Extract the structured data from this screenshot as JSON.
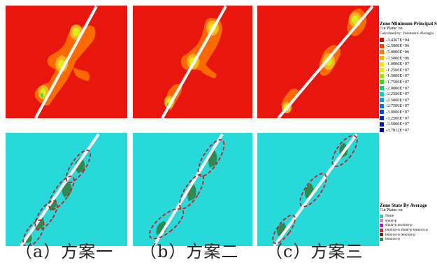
{
  "colors": {
    "stress_background": "#e8160c",
    "zone_background": "#27d9d9",
    "crack_line": "#ffffff",
    "damage_ellipse": "#d01a1a",
    "tension_patch": "#2f8a52"
  },
  "legend_top": {
    "title": "Zone Minimum Principal Stres",
    "sub1": "Cut Plane: on",
    "sub2": "Calculated by: Volumetric Averagin",
    "entries": [
      {
        "label": "-3.4367E+04",
        "color": "#e50000"
      },
      {
        "label": "-2.5000E+06",
        "color": "#ff3b00"
      },
      {
        "label": "-5.0000E+06",
        "color": "#ff7800"
      },
      {
        "label": "-7.5000E+06",
        "color": "#ffae00"
      },
      {
        "label": "-1.0000E+07",
        "color": "#ffe000"
      },
      {
        "label": "-1.2500E+07",
        "color": "#d8f200"
      },
      {
        "label": "-1.5000E+07",
        "color": "#8ee800"
      },
      {
        "label": "-1.7500E+07",
        "color": "#33dd00"
      },
      {
        "label": "-2.0000E+07",
        "color": "#00d26e"
      },
      {
        "label": "-2.2500E+07",
        "color": "#00c8c8"
      },
      {
        "label": "-2.5000E+07",
        "color": "#009ee8"
      },
      {
        "label": "-2.7500E+07",
        "color": "#0070f0"
      },
      {
        "label": "-3.0000E+07",
        "color": "#0044ec"
      },
      {
        "label": "-3.2500E+07",
        "color": "#0022d8"
      },
      {
        "label": "-3.5000E+07",
        "color": "#0010c0"
      },
      {
        "label": "-3.7012E+07",
        "color": "#0000a8"
      }
    ]
  },
  "legend_bottom": {
    "title": "Zone State By Average",
    "sub1": "Cut Plane: on",
    "entries": [
      {
        "label": "None",
        "color": "#22d5d5"
      },
      {
        "label": "shear-p",
        "color": "#e57bd6"
      },
      {
        "label": "shear-p tension-p",
        "color": "#c01ac0"
      },
      {
        "label": "tension-n shear-p tension-p",
        "color": "#ff1a1a"
      },
      {
        "label": "tension-n tension-p",
        "color": "#8b1a1a"
      },
      {
        "label": "tension-p",
        "color": "#2f8a52"
      }
    ]
  },
  "captions": [
    "（a）方案一",
    "（b）方案二",
    "（c）方案三"
  ]
}
